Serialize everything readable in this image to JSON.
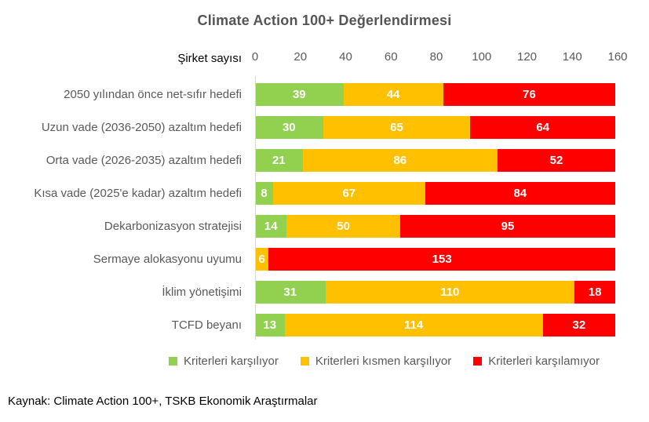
{
  "title": "Climate Action 100+ Değerlendirmesi",
  "axis_label": "Şirket sayısı",
  "source": "Kaynak: Climate Action 100+, TSKB Ekonomik Araştırmalar",
  "colors": {
    "met": "#92D050",
    "partial": "#FFC000",
    "not_met": "#FF0000",
    "axis_line": "#d9d9d9",
    "label_gray": "#595959"
  },
  "chart_data": {
    "type": "bar",
    "orientation": "horizontal",
    "stacked": true,
    "title": "Climate Action 100+ Değerlendirmesi",
    "xlabel": "Şirket sayısı",
    "ylabel": "",
    "xlim": [
      0,
      160
    ],
    "xticks": [
      0,
      20,
      40,
      60,
      80,
      100,
      120,
      140,
      160
    ],
    "grid": false,
    "legend_position": "bottom",
    "categories": [
      "2050 yılından önce net-sıfır hedefi",
      "Uzun vade (2036-2050) azaltım hedefi",
      "Orta vade (2026-2035) azaltım hedefi",
      "Kısa vade (2025'e kadar) azaltım hedefi",
      "Dekarbonizasyon stratejisi",
      "Sermaye alokasyonu uyumu",
      "İklim yönetişimi",
      "TCFD beyanı"
    ],
    "series": [
      {
        "name": "Kriterleri karşılıyor",
        "color": "#92D050",
        "values": [
          39,
          30,
          21,
          8,
          14,
          0,
          31,
          13
        ]
      },
      {
        "name": "Kriterleri kısmen karşılıyor",
        "color": "#FFC000",
        "values": [
          44,
          65,
          86,
          67,
          50,
          6,
          110,
          114
        ]
      },
      {
        "name": "Kriterleri karşılamıyor",
        "color": "#FF0000",
        "values": [
          76,
          64,
          52,
          84,
          95,
          153,
          18,
          32
        ]
      }
    ]
  },
  "legend": [
    {
      "label": "Kriterleri karşılıyor",
      "color": "#92D050"
    },
    {
      "label": "Kriterleri kısmen karşılıyor",
      "color": "#FFC000"
    },
    {
      "label": "Kriterleri karşılamıyor",
      "color": "#FF0000"
    }
  ]
}
